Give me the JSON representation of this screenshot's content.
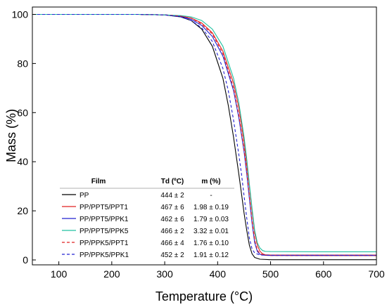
{
  "chart_data": {
    "type": "line",
    "xlabel": "Temperature (°C)",
    "ylabel": "Mass (%)",
    "xlim": [
      50,
      700
    ],
    "ylim": [
      -2,
      103
    ],
    "xticks": [
      100,
      200,
      300,
      400,
      500,
      600,
      700
    ],
    "yticks": [
      0,
      20,
      40,
      60,
      80,
      100
    ],
    "grid": false,
    "series": [
      {
        "name": "PP",
        "color": "#000000",
        "dash": "solid",
        "x": [
          50,
          250,
          300,
          330,
          350,
          370,
          390,
          410,
          420,
          430,
          440,
          445,
          450,
          455,
          460,
          465,
          470,
          480,
          500,
          600,
          700
        ],
        "y": [
          100,
          100,
          99.8,
          99,
          97.5,
          94,
          87,
          74,
          63,
          50,
          35,
          27,
          19,
          12,
          6,
          2.5,
          1,
          0.3,
          0.1,
          0.1,
          0.1
        ]
      },
      {
        "name": "PP/PPT5/PPT1",
        "color": "#e02020",
        "dash": "solid",
        "x": [
          50,
          250,
          300,
          330,
          350,
          370,
          390,
          410,
          430,
          440,
          450,
          455,
          460,
          465,
          470,
          475,
          480,
          485,
          490,
          500,
          600,
          700
        ],
        "y": [
          100,
          100,
          99.8,
          99.3,
          98.5,
          96.5,
          92.5,
          85,
          72,
          62,
          48,
          39,
          30,
          20,
          11,
          6,
          3.5,
          2.5,
          2.1,
          2.0,
          1.98,
          1.98
        ]
      },
      {
        "name": "PP/PPT5/PPK1",
        "color": "#2020d0",
        "dash": "solid",
        "x": [
          50,
          250,
          300,
          330,
          350,
          370,
          390,
          410,
          430,
          440,
          450,
          455,
          460,
          465,
          470,
          475,
          480,
          490,
          500,
          600,
          700
        ],
        "y": [
          100,
          100,
          99.8,
          99.2,
          98,
          95.5,
          91,
          83,
          69,
          58,
          44,
          35,
          25,
          15,
          7,
          3.5,
          2.3,
          1.9,
          1.8,
          1.79,
          1.79
        ]
      },
      {
        "name": "PP/PPT5/PPK5",
        "color": "#20c0a0",
        "dash": "solid",
        "x": [
          50,
          250,
          300,
          330,
          350,
          370,
          390,
          410,
          430,
          440,
          450,
          455,
          460,
          465,
          470,
          475,
          480,
          485,
          490,
          500,
          600,
          700
        ],
        "y": [
          100,
          100,
          99.8,
          99.5,
          99,
          97.5,
          94,
          87,
          74,
          64,
          50,
          41,
          31,
          21,
          12,
          7,
          4.8,
          3.8,
          3.5,
          3.4,
          3.32,
          3.32
        ]
      },
      {
        "name": "PP/PPK5/PPT1",
        "color": "#e02020",
        "dash": "dash",
        "x": [
          50,
          250,
          300,
          330,
          350,
          370,
          390,
          410,
          430,
          440,
          450,
          455,
          460,
          465,
          470,
          475,
          480,
          490,
          500,
          600,
          700
        ],
        "y": [
          100,
          100,
          99.8,
          99.3,
          98.5,
          96,
          92,
          84,
          70,
          59,
          45,
          36,
          26,
          16,
          8,
          4,
          2.5,
          1.9,
          1.8,
          1.76,
          1.76
        ]
      },
      {
        "name": "PP/PPK5/PPK1",
        "color": "#2020d0",
        "dash": "dash",
        "x": [
          50,
          250,
          300,
          330,
          350,
          370,
          390,
          410,
          420,
          430,
          440,
          445,
          450,
          455,
          460,
          465,
          470,
          480,
          490,
          500,
          600,
          700
        ],
        "y": [
          100,
          100,
          99.8,
          99,
          97.5,
          94.5,
          89,
          78,
          69,
          57,
          43,
          35,
          26,
          17,
          9,
          4.5,
          2.8,
          2.0,
          1.95,
          1.92,
          1.91,
          1.91
        ]
      }
    ],
    "table": {
      "headers": [
        "Film",
        "Td (ºC)",
        "m (%)"
      ],
      "rows": [
        {
          "film": "PP",
          "td": "444 ± 2",
          "m": "-"
        },
        {
          "film": "PP/PPT5/PPT1",
          "td": "467 ± 6",
          "m": "1.98 ± 0.19"
        },
        {
          "film": "PP/PPT5/PPK1",
          "td": "462 ± 6",
          "m": "1.79 ± 0.03"
        },
        {
          "film": "PP/PPT5/PPK5",
          "td": "466 ± 2",
          "m": "3.32 ± 0.01"
        },
        {
          "film": "PP/PPK5/PPT1",
          "td": "466 ± 4",
          "m": "1.76 ± 0.10"
        },
        {
          "film": "PP/PPK5/PPK1",
          "td": "452 ± 2",
          "m": "1.91 ± 0.12"
        }
      ]
    }
  }
}
